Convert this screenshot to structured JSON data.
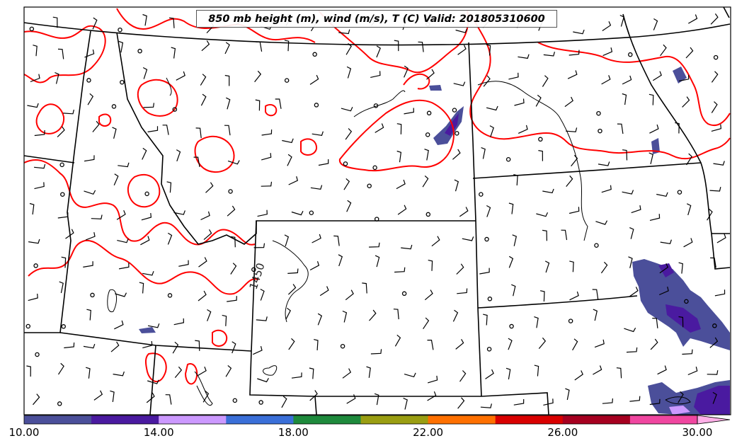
{
  "map": {
    "title": "850 mb height (m), wind (m/s), T (C) Valid: 201805310600",
    "contour_label": "1450",
    "temperature_contour_color": "#ff0000",
    "boundary_color": "#000000"
  },
  "colorbar": {
    "ticks": [
      "10.00",
      "14.00",
      "18.00",
      "22.00",
      "26.00",
      "30.00"
    ],
    "min": 10,
    "max": 30,
    "step": 2,
    "colors": [
      "#4b4f9a",
      "#4a1aa0",
      "#cc99ff",
      "#3a6fd8",
      "#1e8a3c",
      "#9a9e12",
      "#ff7000",
      "#d90000",
      "#a60020",
      "#f046a0"
    ],
    "extend_color": "#ffb0e8"
  },
  "icons": [
    "wind-barb-icon",
    "calm-circle-icon"
  ]
}
